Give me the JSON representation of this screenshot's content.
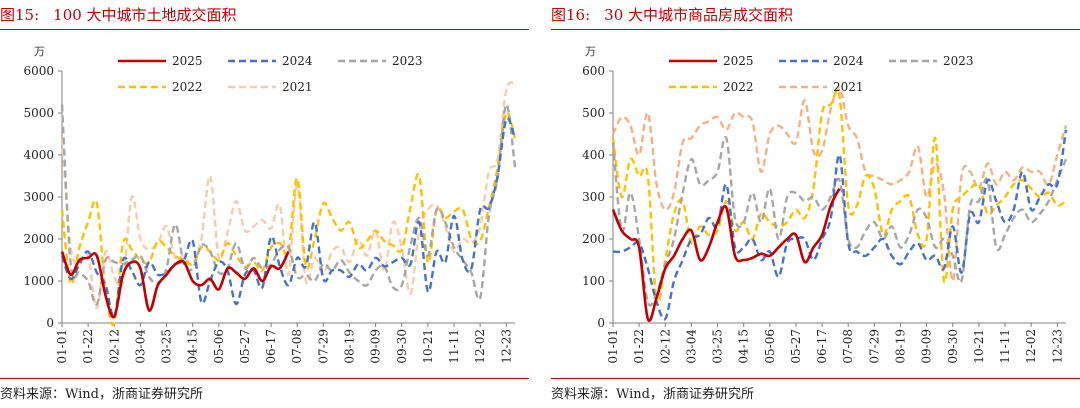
{
  "chart_data": [
    {
      "type": "line",
      "figure_no": "图15:",
      "title": "100 大中城市土地成交面积",
      "unit": "万",
      "ylim": [
        0,
        6000
      ],
      "yticks": [
        0,
        1000,
        2000,
        3000,
        4000,
        5000,
        6000
      ],
      "xticks": [
        "01-01",
        "01-22",
        "02-12",
        "03-04",
        "03-25",
        "04-15",
        "05-06",
        "05-27",
        "06-17",
        "07-08",
        "07-29",
        "08-19",
        "09-09",
        "09-30",
        "10-21",
        "11-11",
        "12-02",
        "12-23"
      ],
      "x_axis": "week_index",
      "weeks": 53,
      "grid": false,
      "legend_position": "top",
      "source": "资料来源：Wind，浙商证券研究所",
      "series": [
        {
          "name": "2025",
          "color": "#c00000",
          "dash": "solid",
          "x": [
            0,
            1,
            2,
            3,
            4,
            5,
            6,
            7,
            8,
            9,
            10,
            11,
            12,
            13,
            14,
            15,
            16,
            17,
            18,
            19,
            20,
            21,
            22,
            23,
            24,
            25,
            26
          ],
          "values": [
            1700,
            1150,
            1500,
            1550,
            1600,
            650,
            150,
            1150,
            1450,
            1300,
            300,
            900,
            1150,
            1400,
            1450,
            1000,
            900,
            1050,
            800,
            1300,
            1200,
            1050,
            1300,
            1000,
            1350,
            1300,
            1700
          ]
        },
        {
          "name": "2024",
          "color": "#4472c4",
          "dash": "dash",
          "x": [
            0,
            1,
            2,
            3,
            4,
            5,
            6,
            7,
            8,
            9,
            10,
            11,
            12,
            13,
            14,
            15,
            16,
            17,
            18,
            19,
            20,
            21,
            22,
            23,
            24,
            25,
            26,
            27,
            28,
            29,
            30,
            31,
            32,
            33,
            34,
            35,
            36,
            37,
            38,
            39,
            40,
            41,
            42,
            43,
            44,
            45,
            46,
            47,
            48,
            49,
            50,
            51,
            52
          ],
          "values": [
            1600,
            1050,
            1400,
            1700,
            1200,
            900,
            150,
            1500,
            1250,
            900,
            1450,
            1150,
            1200,
            1400,
            1500,
            1950,
            500,
            1000,
            1450,
            1250,
            450,
            1150,
            1250,
            850,
            2050,
            1350,
            900,
            1550,
            1350,
            2400,
            1050,
            1250,
            1250,
            1100,
            1400,
            1250,
            1550,
            1350,
            1450,
            1550,
            1400,
            2400,
            750,
            1700,
            1450,
            2550,
            1500,
            1300,
            2700,
            2750,
            3500,
            4850,
            4400
          ]
        },
        {
          "name": "2023",
          "color": "#a6a6a6",
          "dash": "dash",
          "x": [
            0,
            1,
            2,
            3,
            4,
            5,
            6,
            7,
            8,
            9,
            10,
            11,
            12,
            13,
            14,
            15,
            16,
            17,
            18,
            19,
            20,
            21,
            22,
            23,
            24,
            25,
            26,
            27,
            28,
            29,
            30,
            31,
            32,
            33,
            34,
            35,
            36,
            37,
            38,
            39,
            40,
            41,
            42,
            43,
            44,
            45,
            46,
            47,
            48,
            49,
            50,
            51,
            52
          ],
          "values": [
            5200,
            1400,
            1200,
            1000,
            450,
            1500,
            1450,
            1400,
            1500,
            1600,
            1100,
            950,
            1300,
            2350,
            1400,
            1300,
            1850,
            1700,
            1200,
            1300,
            1900,
            1300,
            1550,
            1300,
            1400,
            1750,
            1800,
            1100,
            1150,
            1000,
            1400,
            1250,
            1500,
            1200,
            1000,
            900,
            1250,
            1350,
            850,
            900,
            1850,
            2500,
            1600,
            2700,
            2400,
            1800,
            1500,
            1200,
            600,
            2550,
            3450,
            5200,
            3700
          ]
        },
        {
          "name": "2022",
          "color": "#ffc000",
          "dash": "dash",
          "x": [
            0,
            1,
            2,
            3,
            4,
            5,
            6,
            7,
            8,
            9,
            10,
            11,
            12,
            13,
            14,
            15,
            16,
            17,
            18,
            19,
            20,
            21,
            22,
            23,
            24,
            25,
            26,
            27,
            28,
            29,
            30,
            31,
            32,
            33,
            34,
            35,
            36,
            37,
            38,
            39,
            40,
            41,
            42,
            43,
            44,
            45,
            46,
            47,
            48,
            49,
            50,
            51,
            52
          ],
          "values": [
            2700,
            950,
            1800,
            2400,
            2850,
            750,
            0,
            1900,
            1750,
            1500,
            1450,
            1950,
            1800,
            1600,
            1500,
            1400,
            1800,
            1700,
            1500,
            1900,
            1600,
            1350,
            1450,
            1250,
            1800,
            1900,
            1700,
            3450,
            1350,
            2000,
            2850,
            2500,
            2200,
            2400,
            1800,
            1950,
            2200,
            1950,
            1850,
            1750,
            2750,
            3500,
            1450,
            2700,
            2500,
            2650,
            2700,
            2000,
            1950,
            2750,
            3700,
            5000,
            4400
          ]
        },
        {
          "name": "2021",
          "color": "#f8cbad",
          "dash": "dash",
          "x": [
            0,
            1,
            2,
            3,
            4,
            5,
            6,
            7,
            8,
            9,
            10,
            11,
            12,
            13,
            14,
            15,
            16,
            17,
            18,
            19,
            20,
            21,
            22,
            23,
            24,
            25,
            26,
            27,
            28,
            29,
            30,
            31,
            32,
            33,
            34,
            35,
            36,
            37,
            38,
            39,
            40,
            41,
            42,
            43,
            44,
            45,
            46,
            47,
            48,
            49,
            50,
            51,
            52
          ],
          "values": [
            4400,
            1800,
            1400,
            1600,
            350,
            1700,
            1100,
            1000,
            3000,
            2000,
            1750,
            1900,
            2300,
            1550,
            1600,
            1400,
            2000,
            3500,
            1550,
            2150,
            2900,
            2200,
            2300,
            2450,
            2250,
            2800,
            1150,
            3300,
            1000,
            1550,
            1200,
            1700,
            1800,
            1450,
            2000,
            1600,
            2200,
            1250,
            2400,
            1800,
            700,
            2200,
            2700,
            2800,
            2300,
            1700,
            2000,
            1900,
            2300,
            3600,
            3900,
            5550,
            5700
          ]
        }
      ]
    },
    {
      "type": "line",
      "figure_no": "图16:",
      "title": "30 大中城市商品房成交面积",
      "unit": "万",
      "ylim": [
        0,
        600
      ],
      "yticks": [
        0,
        100,
        200,
        300,
        400,
        500,
        600
      ],
      "xticks": [
        "01-01",
        "01-22",
        "02-12",
        "03-04",
        "03-25",
        "04-15",
        "05-06",
        "05-27",
        "06-17",
        "07-08",
        "07-29",
        "08-19",
        "09-09",
        "09-30",
        "10-21",
        "11-11",
        "12-02",
        "12-23"
      ],
      "x_axis": "week_index",
      "weeks": 53,
      "grid": false,
      "legend_position": "top",
      "source": "资料来源：Wind，浙商证券研究所",
      "series": [
        {
          "name": "2025",
          "color": "#c00000",
          "dash": "solid",
          "x": [
            0,
            1,
            2,
            3,
            4,
            5,
            6,
            7,
            8,
            9,
            10,
            11,
            12,
            13,
            14,
            15,
            16,
            17,
            18,
            19,
            20,
            21,
            22,
            23,
            24,
            25,
            26
          ],
          "values": [
            270,
            220,
            200,
            180,
            10,
            60,
            130,
            160,
            200,
            220,
            150,
            180,
            240,
            275,
            160,
            150,
            155,
            165,
            160,
            180,
            200,
            210,
            145,
            180,
            210,
            280,
            320
          ]
        },
        {
          "name": "2024",
          "color": "#4472c4",
          "dash": "dash",
          "x": [
            0,
            1,
            2,
            3,
            4,
            5,
            6,
            7,
            8,
            9,
            10,
            11,
            12,
            13,
            14,
            15,
            16,
            17,
            18,
            19,
            20,
            21,
            22,
            23,
            24,
            25,
            26,
            27,
            28,
            29,
            30,
            31,
            32,
            33,
            34,
            35,
            36,
            37,
            38,
            39,
            40,
            41,
            42,
            43,
            44,
            45,
            46,
            47,
            48,
            49,
            50,
            51,
            52
          ],
          "values": [
            170,
            170,
            180,
            190,
            130,
            50,
            10,
            100,
            150,
            200,
            210,
            250,
            230,
            330,
            180,
            180,
            200,
            150,
            170,
            110,
            190,
            200,
            200,
            150,
            200,
            250,
            400,
            190,
            170,
            160,
            180,
            200,
            160,
            140,
            170,
            190,
            150,
            160,
            130,
            230,
            120,
            260,
            240,
            340,
            290,
            240,
            270,
            360,
            270,
            300,
            330,
            330,
            460
          ]
        },
        {
          "name": "2023",
          "color": "#a6a6a6",
          "dash": "dash",
          "x": [
            0,
            1,
            2,
            3,
            4,
            5,
            6,
            7,
            8,
            9,
            10,
            11,
            12,
            13,
            14,
            15,
            16,
            17,
            18,
            19,
            20,
            21,
            22,
            23,
            24,
            25,
            26,
            27,
            28,
            29,
            30,
            31,
            32,
            33,
            34,
            35,
            36,
            37,
            38,
            39,
            40,
            41,
            42,
            43,
            44,
            45,
            46,
            47,
            48,
            49,
            50,
            51,
            52
          ],
          "values": [
            430,
            220,
            310,
            200,
            50,
            70,
            140,
            200,
            310,
            390,
            330,
            340,
            360,
            440,
            250,
            240,
            310,
            240,
            320,
            200,
            300,
            310,
            290,
            300,
            270,
            300,
            340,
            200,
            180,
            220,
            240,
            200,
            230,
            180,
            210,
            270,
            250,
            180,
            200,
            160,
            100,
            280,
            290,
            340,
            180,
            210,
            250,
            270,
            240,
            260,
            290,
            340,
            390
          ]
        },
        {
          "name": "2022",
          "color": "#ffc000",
          "dash": "dash",
          "x": [
            0,
            1,
            2,
            3,
            4,
            5,
            6,
            7,
            8,
            9,
            10,
            11,
            12,
            13,
            14,
            15,
            16,
            17,
            18,
            19,
            20,
            21,
            22,
            23,
            24,
            25,
            26,
            27,
            28,
            29,
            30,
            31,
            32,
            33,
            34,
            35,
            36,
            37,
            38,
            39,
            40,
            41,
            42,
            43,
            44,
            45,
            46,
            47,
            48,
            49,
            50,
            51,
            52
          ],
          "values": [
            440,
            300,
            390,
            350,
            350,
            50,
            150,
            260,
            290,
            190,
            230,
            210,
            220,
            290,
            220,
            240,
            200,
            260,
            240,
            230,
            240,
            270,
            250,
            320,
            500,
            520,
            540,
            280,
            280,
            350,
            320,
            210,
            270,
            290,
            300,
            210,
            200,
            440,
            100,
            270,
            300,
            320,
            330,
            260,
            280,
            300,
            330,
            340,
            320,
            300,
            310,
            280,
            290
          ]
        },
        {
          "name": "2021",
          "color": "#f4b183",
          "dash": "dash",
          "x": [
            0,
            1,
            2,
            3,
            4,
            5,
            6,
            7,
            8,
            9,
            10,
            11,
            12,
            13,
            14,
            15,
            16,
            17,
            18,
            19,
            20,
            21,
            22,
            23,
            24,
            25,
            26,
            27,
            28,
            29,
            30,
            31,
            32,
            33,
            34,
            35,
            36,
            37,
            38,
            39,
            40,
            41,
            42,
            43,
            44,
            45,
            46,
            47,
            48,
            49,
            50,
            51,
            52
          ],
          "values": [
            450,
            490,
            470,
            400,
            500,
            330,
            270,
            310,
            430,
            440,
            470,
            480,
            490,
            460,
            500,
            490,
            480,
            360,
            450,
            470,
            450,
            430,
            530,
            410,
            410,
            510,
            560,
            470,
            440,
            360,
            350,
            340,
            330,
            340,
            360,
            420,
            300,
            380,
            310,
            100,
            350,
            360,
            320,
            380,
            330,
            360,
            340,
            370,
            360,
            360,
            330,
            400,
            470
          ]
        }
      ]
    }
  ]
}
